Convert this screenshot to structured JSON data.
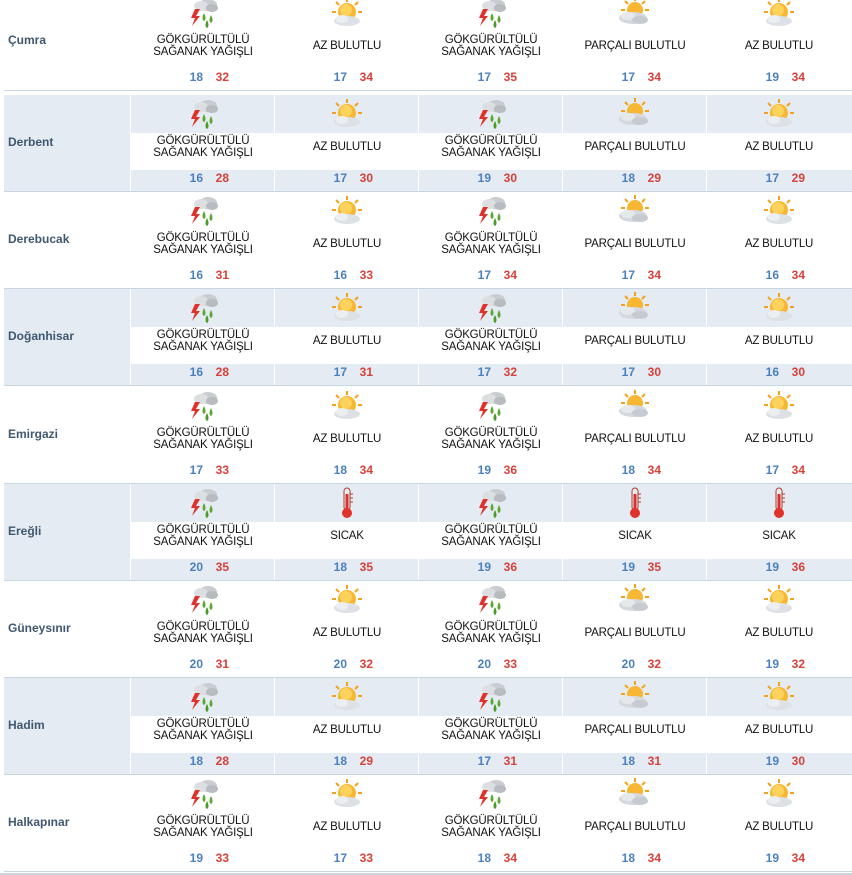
{
  "colors": {
    "min_temp": "#4a7fc0",
    "max_temp": "#d8403a",
    "city": "#3f5870",
    "band": "#e4ebf2"
  },
  "rows": [
    {
      "city": "Çumra",
      "days": [
        {
          "icon": "thunderstorm-rain-icon",
          "desc": "GÖKGÜRÜLTÜLÜ SAĞANAK YAĞIŞLI",
          "min": "18",
          "max": "32"
        },
        {
          "icon": "mostly-sunny-icon",
          "desc": "AZ BULUTLU",
          "min": "17",
          "max": "34"
        },
        {
          "icon": "thunderstorm-rain-icon",
          "desc": "GÖKGÜRÜLTÜLÜ SAĞANAK YAĞIŞLI",
          "min": "17",
          "max": "35"
        },
        {
          "icon": "partly-cloudy-icon",
          "desc": "PARÇALI BULUTLU",
          "min": "17",
          "max": "34"
        },
        {
          "icon": "mostly-sunny-icon",
          "desc": "AZ BULUTLU",
          "min": "19",
          "max": "34"
        }
      ]
    },
    {
      "city": "Derbent",
      "days": [
        {
          "icon": "thunderstorm-rain-icon",
          "desc": "GÖKGÜRÜLTÜLÜ SAĞANAK YAĞIŞLI",
          "min": "16",
          "max": "28"
        },
        {
          "icon": "mostly-sunny-icon",
          "desc": "AZ BULUTLU",
          "min": "17",
          "max": "30"
        },
        {
          "icon": "thunderstorm-rain-icon",
          "desc": "GÖKGÜRÜLTÜLÜ SAĞANAK YAĞIŞLI",
          "min": "19",
          "max": "30"
        },
        {
          "icon": "partly-cloudy-icon",
          "desc": "PARÇALI BULUTLU",
          "min": "18",
          "max": "29"
        },
        {
          "icon": "mostly-sunny-icon",
          "desc": "AZ BULUTLU",
          "min": "17",
          "max": "29"
        }
      ]
    },
    {
      "city": "Derebucak",
      "days": [
        {
          "icon": "thunderstorm-rain-icon",
          "desc": "GÖKGÜRÜLTÜLÜ SAĞANAK YAĞIŞLI",
          "min": "16",
          "max": "31"
        },
        {
          "icon": "mostly-sunny-icon",
          "desc": "AZ BULUTLU",
          "min": "16",
          "max": "33"
        },
        {
          "icon": "thunderstorm-rain-icon",
          "desc": "GÖKGÜRÜLTÜLÜ SAĞANAK YAĞIŞLI",
          "min": "17",
          "max": "34"
        },
        {
          "icon": "partly-cloudy-icon",
          "desc": "PARÇALI BULUTLU",
          "min": "17",
          "max": "34"
        },
        {
          "icon": "mostly-sunny-icon",
          "desc": "AZ BULUTLU",
          "min": "16",
          "max": "34"
        }
      ]
    },
    {
      "city": "Doğanhisar",
      "days": [
        {
          "icon": "thunderstorm-rain-icon",
          "desc": "GÖKGÜRÜLTÜLÜ SAĞANAK YAĞIŞLI",
          "min": "16",
          "max": "28"
        },
        {
          "icon": "mostly-sunny-icon",
          "desc": "AZ BULUTLU",
          "min": "17",
          "max": "31"
        },
        {
          "icon": "thunderstorm-rain-icon",
          "desc": "GÖKGÜRÜLTÜLÜ SAĞANAK YAĞIŞLI",
          "min": "17",
          "max": "32"
        },
        {
          "icon": "partly-cloudy-icon",
          "desc": "PARÇALI BULUTLU",
          "min": "17",
          "max": "30"
        },
        {
          "icon": "mostly-sunny-icon",
          "desc": "AZ BULUTLU",
          "min": "16",
          "max": "30"
        }
      ]
    },
    {
      "city": "Emirgazi",
      "days": [
        {
          "icon": "thunderstorm-rain-icon",
          "desc": "GÖKGÜRÜLTÜLÜ SAĞANAK YAĞIŞLI",
          "min": "17",
          "max": "33"
        },
        {
          "icon": "mostly-sunny-icon",
          "desc": "AZ BULUTLU",
          "min": "18",
          "max": "34"
        },
        {
          "icon": "thunderstorm-rain-icon",
          "desc": "GÖKGÜRÜLTÜLÜ SAĞANAK YAĞIŞLI",
          "min": "19",
          "max": "36"
        },
        {
          "icon": "partly-cloudy-icon",
          "desc": "PARÇALI BULUTLU",
          "min": "18",
          "max": "34"
        },
        {
          "icon": "mostly-sunny-icon",
          "desc": "AZ BULUTLU",
          "min": "17",
          "max": "34"
        }
      ]
    },
    {
      "city": "Ereğli",
      "days": [
        {
          "icon": "thunderstorm-rain-icon",
          "desc": "GÖKGÜRÜLTÜLÜ SAĞANAK YAĞIŞLI",
          "min": "20",
          "max": "35"
        },
        {
          "icon": "hot-thermometer-icon",
          "desc": "SICAK",
          "min": "18",
          "max": "35"
        },
        {
          "icon": "thunderstorm-rain-icon",
          "desc": "GÖKGÜRÜLTÜLÜ SAĞANAK YAĞIŞLI",
          "min": "19",
          "max": "36"
        },
        {
          "icon": "hot-thermometer-icon",
          "desc": "SICAK",
          "min": "19",
          "max": "35"
        },
        {
          "icon": "hot-thermometer-icon",
          "desc": "SICAK",
          "min": "19",
          "max": "36"
        }
      ]
    },
    {
      "city": "Güneysınır",
      "days": [
        {
          "icon": "thunderstorm-rain-icon",
          "desc": "GÖKGÜRÜLTÜLÜ SAĞANAK YAĞIŞLI",
          "min": "20",
          "max": "31"
        },
        {
          "icon": "mostly-sunny-icon",
          "desc": "AZ BULUTLU",
          "min": "20",
          "max": "32"
        },
        {
          "icon": "thunderstorm-rain-icon",
          "desc": "GÖKGÜRÜLTÜLÜ SAĞANAK YAĞIŞLI",
          "min": "20",
          "max": "33"
        },
        {
          "icon": "partly-cloudy-icon",
          "desc": "PARÇALI BULUTLU",
          "min": "20",
          "max": "32"
        },
        {
          "icon": "mostly-sunny-icon",
          "desc": "AZ BULUTLU",
          "min": "19",
          "max": "32"
        }
      ]
    },
    {
      "city": "Hadim",
      "days": [
        {
          "icon": "thunderstorm-rain-icon",
          "desc": "GÖKGÜRÜLTÜLÜ SAĞANAK YAĞIŞLI",
          "min": "18",
          "max": "28"
        },
        {
          "icon": "mostly-sunny-icon",
          "desc": "AZ BULUTLU",
          "min": "18",
          "max": "29"
        },
        {
          "icon": "thunderstorm-rain-icon",
          "desc": "GÖKGÜRÜLTÜLÜ SAĞANAK YAĞIŞLI",
          "min": "17",
          "max": "31"
        },
        {
          "icon": "partly-cloudy-icon",
          "desc": "PARÇALI BULUTLU",
          "min": "18",
          "max": "31"
        },
        {
          "icon": "mostly-sunny-icon",
          "desc": "AZ BULUTLU",
          "min": "19",
          "max": "30"
        }
      ]
    },
    {
      "city": "Halkapınar",
      "days": [
        {
          "icon": "thunderstorm-rain-icon",
          "desc": "GÖKGÜRÜLTÜLÜ SAĞANAK YAĞIŞLI",
          "min": "19",
          "max": "33"
        },
        {
          "icon": "mostly-sunny-icon",
          "desc": "AZ BULUTLU",
          "min": "17",
          "max": "33"
        },
        {
          "icon": "thunderstorm-rain-icon",
          "desc": "GÖKGÜRÜLTÜLÜ SAĞANAK YAĞIŞLI",
          "min": "18",
          "max": "34"
        },
        {
          "icon": "partly-cloudy-icon",
          "desc": "PARÇALI BULUTLU",
          "min": "18",
          "max": "34"
        },
        {
          "icon": "mostly-sunny-icon",
          "desc": "AZ BULUTLU",
          "min": "19",
          "max": "34"
        }
      ]
    }
  ]
}
